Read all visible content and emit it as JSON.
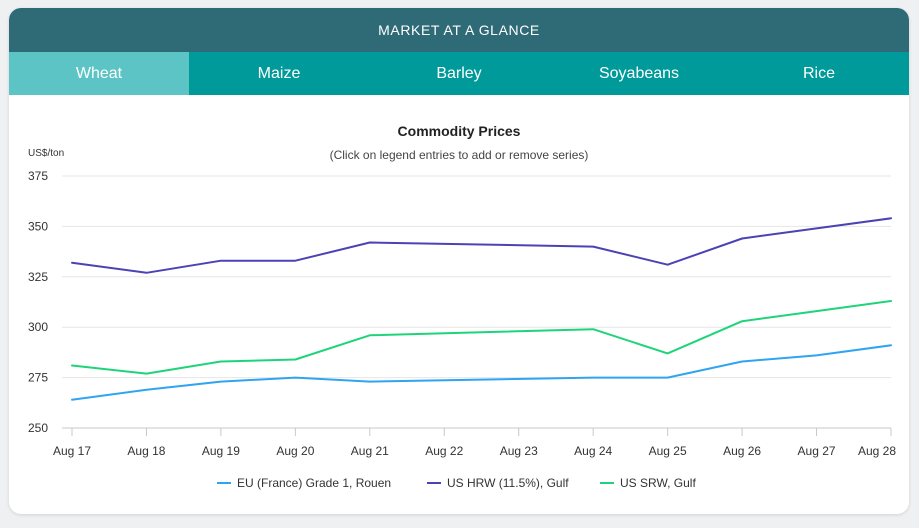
{
  "header": {
    "title": "MARKET AT A GLANCE"
  },
  "tabs": [
    {
      "label": "Wheat",
      "active": true
    },
    {
      "label": "Maize",
      "active": false
    },
    {
      "label": "Barley",
      "active": false
    },
    {
      "label": "Soyabeans",
      "active": false
    },
    {
      "label": "Rice",
      "active": false
    }
  ],
  "chart_data": {
    "type": "line",
    "title": "Commodity Prices",
    "subtitle": "(Click on legend entries to add or remove series)",
    "ylabel": "US$/ton",
    "ylim": [
      250,
      375
    ],
    "yticks": [
      250,
      275,
      300,
      325,
      350,
      375
    ],
    "grid": true,
    "legend_position": "bottom",
    "categories": [
      "Aug 17",
      "Aug 18",
      "Aug 19",
      "Aug 20",
      "Aug 21",
      "Aug 22",
      "Aug 23",
      "Aug 24",
      "Aug 25",
      "Aug 26",
      "Aug 27",
      "Aug 28"
    ],
    "series": [
      {
        "name": "EU (France) Grade 1, Rouen",
        "color": "#2fa5f0",
        "values": [
          264,
          269,
          273,
          275,
          273,
          null,
          null,
          275,
          275,
          283,
          286,
          291
        ]
      },
      {
        "name": "US HRW (11.5%), Gulf",
        "color": "#4b42b5",
        "values": [
          332,
          327,
          333,
          333,
          342,
          null,
          null,
          340,
          331,
          344,
          349,
          354
        ]
      },
      {
        "name": "US SRW, Gulf",
        "color": "#1ed47a",
        "values": [
          281,
          277,
          283,
          284,
          296,
          null,
          null,
          299,
          287,
          303,
          308,
          313
        ]
      }
    ]
  }
}
